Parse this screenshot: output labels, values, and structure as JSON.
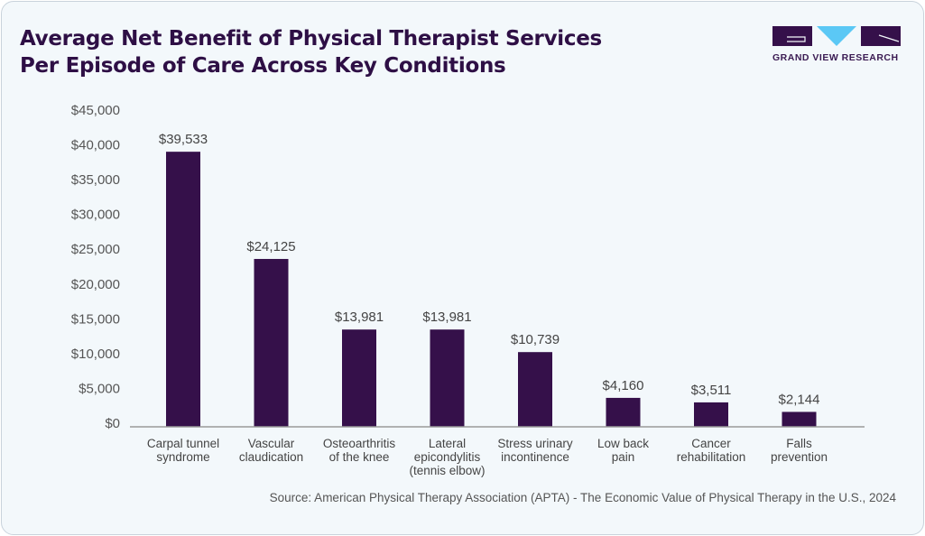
{
  "title_line1": "Average Net Benefit of Physical Therapist Services",
  "title_line2": "Per Episode of Care Across Key Conditions",
  "logo": {
    "text": "GRAND VIEW RESEARCH",
    "primary_color": "#35104a",
    "accent_color": "#5bc8f5"
  },
  "source": "Source: American Physical Therapy Association (APTA) - The Economic Value of Physical Therapy in the U.S., 2024",
  "chart_data": {
    "type": "bar",
    "categories": [
      [
        "Carpal tunnel",
        "syndrome"
      ],
      [
        "Vascular",
        "claudication"
      ],
      [
        "Osteoarthritis",
        "of the knee"
      ],
      [
        "Lateral",
        "epicondylitis",
        "(tennis elbow)"
      ],
      [
        "Stress urinary",
        "incontinence"
      ],
      [
        "Low back",
        "pain"
      ],
      [
        "Cancer",
        "rehabilitation"
      ],
      [
        "Falls",
        "prevention"
      ]
    ],
    "values": [
      39533,
      24125,
      13981,
      13981,
      10739,
      4160,
      3511,
      2144
    ],
    "data_labels": [
      "$39,533",
      "$24,125",
      "$13,981",
      "$13,981",
      "$10,739",
      "$4,160",
      "$3,511",
      "$2,144"
    ],
    "yticks": [
      "$0",
      "$5,000",
      "$10,000",
      "$15,000",
      "$20,000",
      "$25,000",
      "$30,000",
      "$35,000",
      "$40,000",
      "$45,000"
    ],
    "ylim": [
      0,
      45000
    ],
    "bar_color": "#35104a",
    "grid": false
  }
}
